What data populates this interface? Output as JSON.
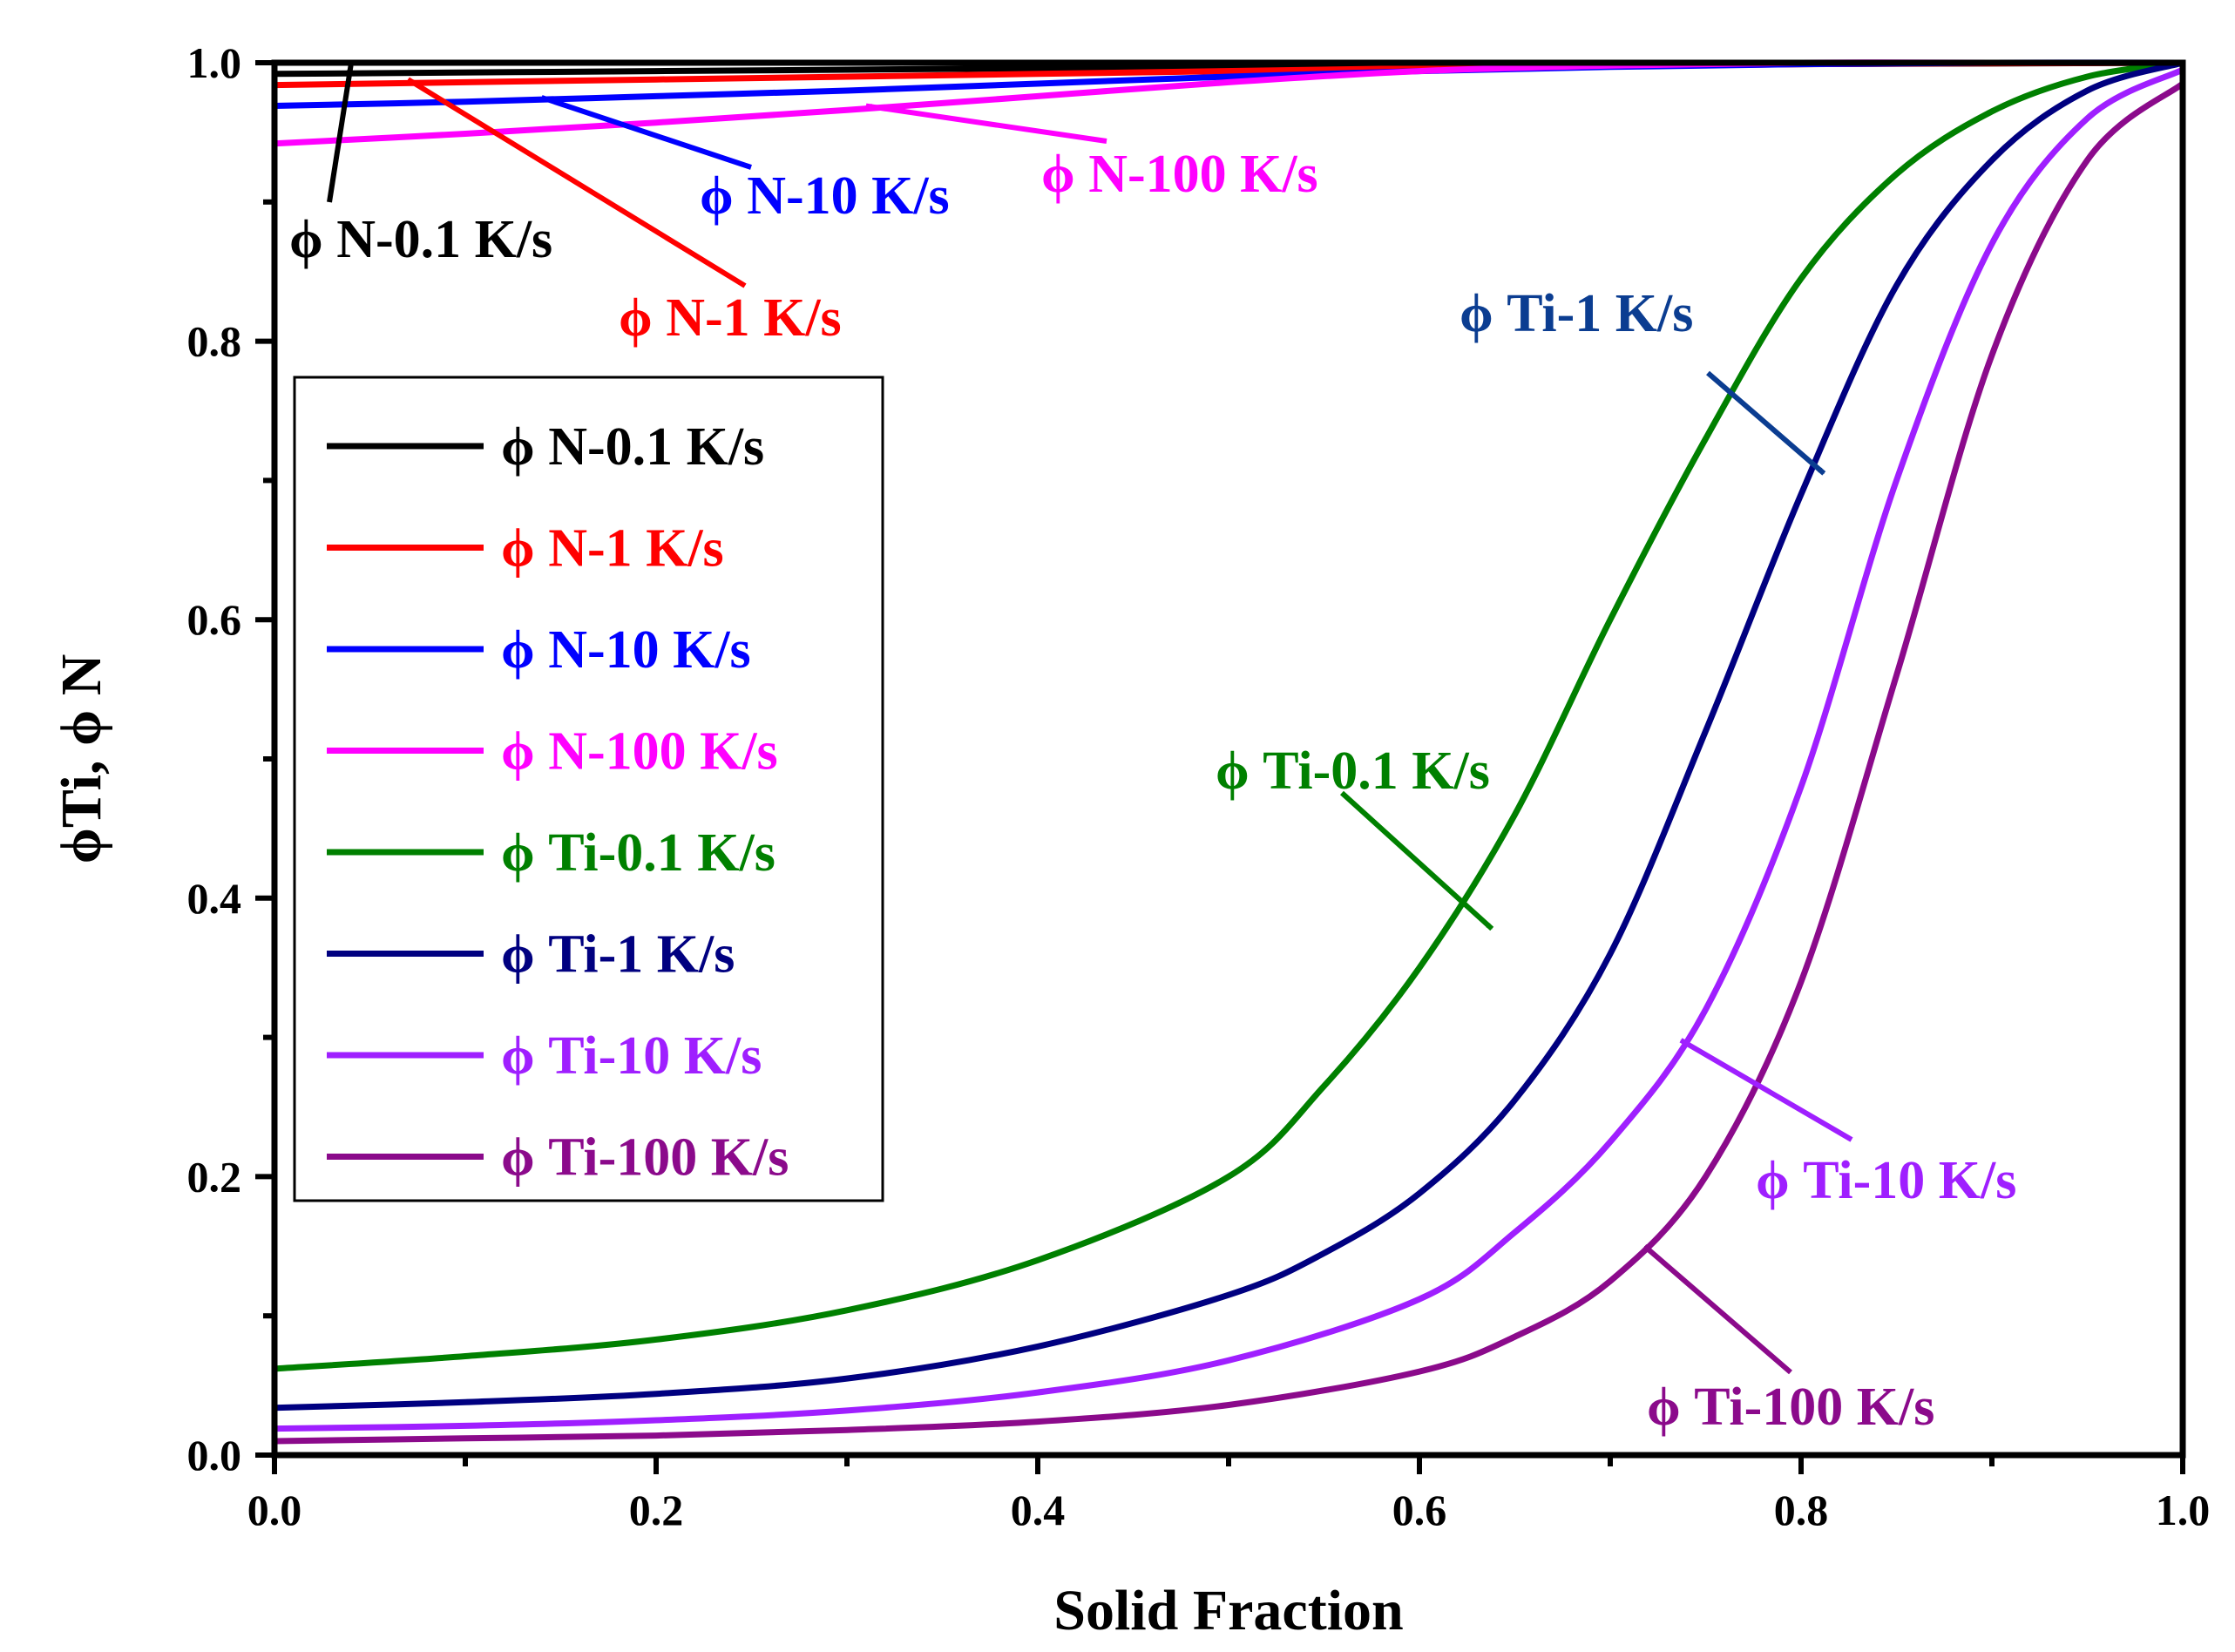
{
  "chart_data": {
    "type": "line",
    "xlabel": "Solid Fraction",
    "ylabel": "ϕTi, ϕ N",
    "xlim": [
      0,
      1
    ],
    "ylim": [
      0,
      1
    ],
    "xticks": [
      "0.0",
      "0.2",
      "0.4",
      "0.6",
      "0.8",
      "1.0"
    ],
    "yticks": [
      "0.0",
      "0.2",
      "0.4",
      "0.6",
      "0.8",
      "1.0"
    ],
    "legend_position": "center-left",
    "series": [
      {
        "name": "ϕ N-0.1 K/s",
        "color": "#000000",
        "x": [
          0,
          0.2,
          0.4,
          0.6,
          0.8,
          1.0
        ],
        "y": [
          0.992,
          0.994,
          0.996,
          0.998,
          0.999,
          1.0
        ]
      },
      {
        "name": "ϕ N-1 K/s",
        "color": "#ff0000",
        "x": [
          0,
          0.2,
          0.4,
          0.6,
          0.8,
          1.0
        ],
        "y": [
          0.984,
          0.988,
          0.992,
          0.996,
          0.999,
          1.0
        ]
      },
      {
        "name": "ϕ N-10 K/s",
        "color": "#0000ff",
        "x": [
          0,
          0.1,
          0.2,
          0.3,
          0.4,
          0.5,
          0.6,
          0.7,
          0.8,
          0.9,
          1.0
        ],
        "y": [
          0.969,
          0.972,
          0.976,
          0.98,
          0.985,
          0.99,
          0.994,
          0.997,
          0.999,
          1.0,
          1.0
        ]
      },
      {
        "name": "ϕ N-100 K/s",
        "color": "#ff00ff",
        "x": [
          0,
          0.1,
          0.2,
          0.3,
          0.4,
          0.5,
          0.6,
          0.7,
          0.8,
          0.9,
          1.0
        ],
        "y": [
          0.942,
          0.949,
          0.957,
          0.966,
          0.976,
          0.986,
          0.994,
          0.998,
          1.0,
          1.0,
          1.0
        ]
      },
      {
        "name": "ϕ Ti-0.1 K/s",
        "color": "#008000",
        "x": [
          0,
          0.1,
          0.2,
          0.3,
          0.4,
          0.5,
          0.55,
          0.6,
          0.65,
          0.7,
          0.75,
          0.8,
          0.85,
          0.9,
          0.95,
          1.0
        ],
        "y": [
          0.062,
          0.071,
          0.083,
          0.104,
          0.14,
          0.2,
          0.265,
          0.35,
          0.46,
          0.6,
          0.73,
          0.845,
          0.92,
          0.965,
          0.99,
          1.0
        ]
      },
      {
        "name": "ϕ Ti-1 K/s",
        "color": "#000080",
        "x": [
          0,
          0.1,
          0.2,
          0.3,
          0.4,
          0.5,
          0.55,
          0.6,
          0.65,
          0.7,
          0.75,
          0.8,
          0.85,
          0.9,
          0.95,
          1.0
        ],
        "y": [
          0.034,
          0.038,
          0.044,
          0.055,
          0.078,
          0.115,
          0.145,
          0.188,
          0.255,
          0.36,
          0.52,
          0.69,
          0.84,
          0.93,
          0.98,
          1.0
        ]
      },
      {
        "name": "ϕ Ti-10 K/s",
        "color": "#9f1fff",
        "x": [
          0,
          0.1,
          0.2,
          0.3,
          0.4,
          0.5,
          0.6,
          0.65,
          0.7,
          0.75,
          0.8,
          0.85,
          0.9,
          0.95,
          1.0
        ],
        "y": [
          0.019,
          0.021,
          0.025,
          0.032,
          0.045,
          0.068,
          0.112,
          0.16,
          0.225,
          0.32,
          0.48,
          0.7,
          0.87,
          0.96,
          0.995
        ]
      },
      {
        "name": "ϕ Ti-100 K/s",
        "color": "#8b0a8b",
        "x": [
          0,
          0.1,
          0.2,
          0.3,
          0.4,
          0.5,
          0.6,
          0.65,
          0.7,
          0.75,
          0.8,
          0.85,
          0.9,
          0.95,
          1.0
        ],
        "y": [
          0.01,
          0.012,
          0.014,
          0.018,
          0.024,
          0.036,
          0.06,
          0.085,
          0.125,
          0.2,
          0.34,
          0.56,
          0.79,
          0.93,
          0.985
        ]
      }
    ],
    "annotations": [
      {
        "text": "ϕ N-0.1 K/s",
        "color": "#000000",
        "point": [
          0.04,
          0.998
        ]
      },
      {
        "text": "ϕ N-1 K/s",
        "color": "#ff0000",
        "point": [
          0.07,
          0.988
        ]
      },
      {
        "text": "ϕ N-10 K/s",
        "color": "#0000ff",
        "point": [
          0.14,
          0.975
        ]
      },
      {
        "text": "ϕ N-100 K/s",
        "color": "#ff00ff",
        "point": [
          0.31,
          0.969
        ]
      },
      {
        "text": "ϕ Ti-1 K/s",
        "color": "#0b3d91",
        "point": [
          0.812,
          0.705
        ]
      },
      {
        "text": "ϕ Ti-0.1 K/s",
        "color": "#008000",
        "point": [
          0.638,
          0.378
        ]
      },
      {
        "text": "ϕ Ti-10 K/s",
        "color": "#9f1fff",
        "point": [
          0.737,
          0.298
        ]
      },
      {
        "text": "ϕ Ti-100 K/s",
        "color": "#8b0a8b",
        "point": [
          0.718,
          0.15
        ]
      }
    ]
  }
}
